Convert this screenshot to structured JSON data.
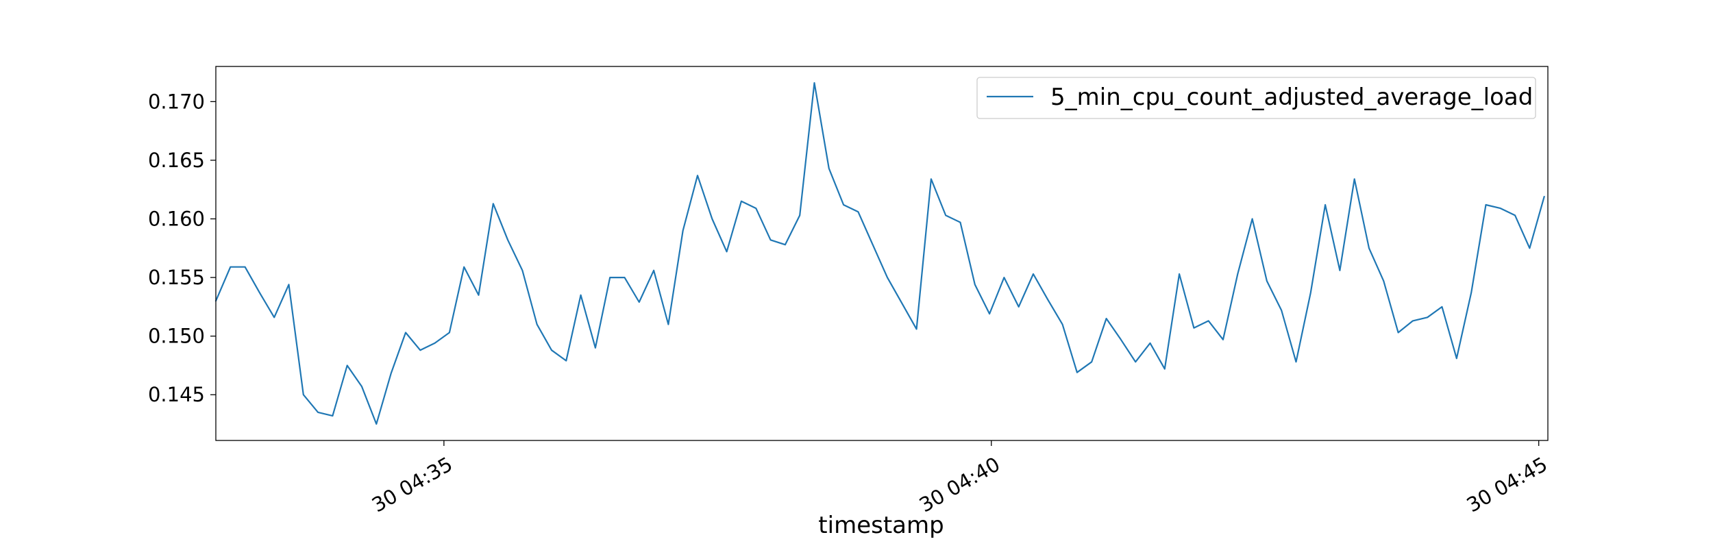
{
  "chart_data": {
    "type": "line",
    "xlabel": "timestamp",
    "ylabel": "",
    "x_ticks": [
      "30 04:35",
      "30 04:40",
      "30 04:45"
    ],
    "y_ticks": [
      "0.145",
      "0.150",
      "0.155",
      "0.160",
      "0.165",
      "0.170"
    ],
    "xlim": [
      "04:32:55",
      "04:45:05"
    ],
    "ylim": [
      0.1411,
      0.173
    ],
    "x_interval_seconds": 8,
    "legend_position": "top-right",
    "grid": false,
    "series": [
      {
        "name": "5_min_cpu_count_adjusted_average_load",
        "color": "#1f77b4",
        "values": [
          0.153,
          0.1559,
          0.1559,
          0.1537,
          0.1516,
          0.1544,
          0.145,
          0.1435,
          0.1432,
          0.1475,
          0.1457,
          0.1425,
          0.1468,
          0.1503,
          0.1488,
          0.1494,
          0.1503,
          0.1559,
          0.1535,
          0.1613,
          0.1582,
          0.1556,
          0.151,
          0.1488,
          0.1479,
          0.1535,
          0.149,
          0.155,
          0.155,
          0.1529,
          0.1556,
          0.151,
          0.159,
          0.1637,
          0.16,
          0.1572,
          0.1615,
          0.1609,
          0.1582,
          0.1578,
          0.1603,
          0.1716,
          0.1643,
          0.1612,
          0.1606,
          0.1578,
          0.155,
          0.1528,
          0.1506,
          0.1634,
          0.1603,
          0.1597,
          0.1544,
          0.1519,
          0.155,
          0.1525,
          0.1553,
          0.1531,
          0.151,
          0.1469,
          0.1478,
          0.1515,
          0.1497,
          0.1478,
          0.1494,
          0.1472,
          0.1553,
          0.1507,
          0.1513,
          0.1497,
          0.1553,
          0.16,
          0.1547,
          0.1522,
          0.1478,
          0.1537,
          0.1612,
          0.1556,
          0.1634,
          0.1575,
          0.1547,
          0.1503,
          0.1513,
          0.1516,
          0.1525,
          0.1481,
          0.1537,
          0.1612,
          0.1609,
          0.1603,
          0.1575,
          0.1619
        ]
      }
    ]
  }
}
